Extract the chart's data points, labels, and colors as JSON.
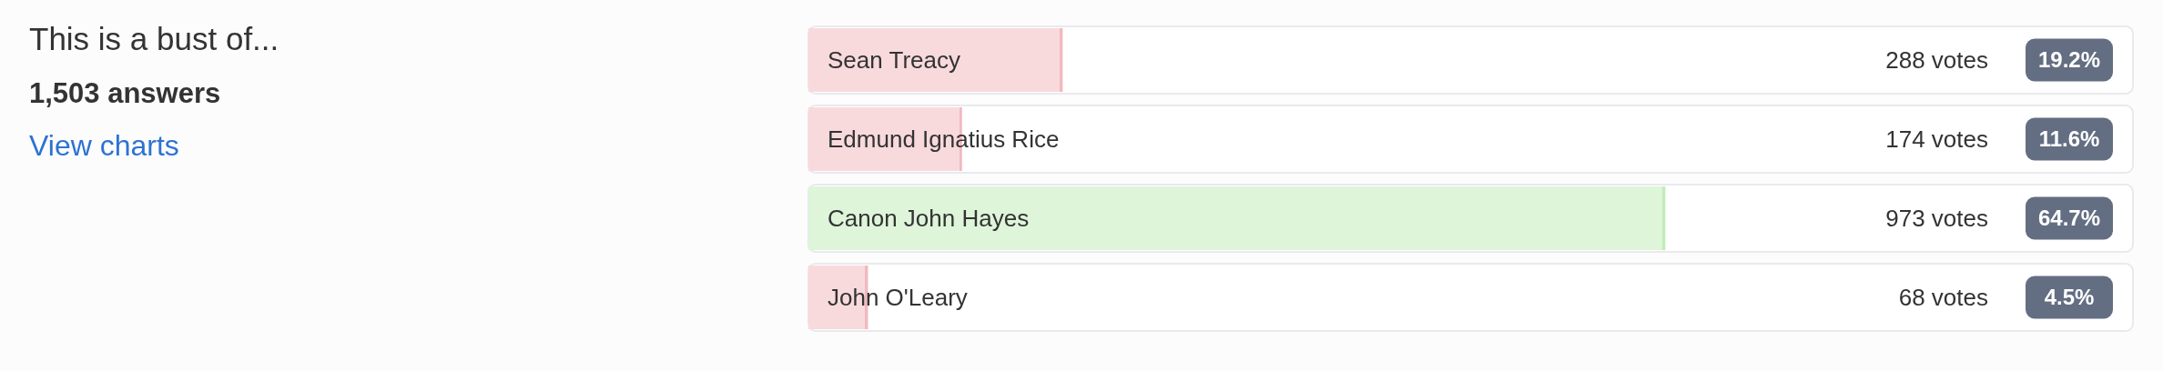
{
  "chart_data": {
    "type": "bar",
    "orientation": "horizontal",
    "title": "This is a bust of...",
    "subtitle": "1,503 answers",
    "categories": [
      "Sean Treacy",
      "Edmund Ignatius Rice",
      "Canon John Hayes",
      "John O'Leary"
    ],
    "values": [
      19.2,
      11.6,
      64.7,
      4.5
    ],
    "value_labels": [
      "19.2%",
      "11.6%",
      "64.7%",
      "4.5%"
    ],
    "colors": [
      "#f8dadd",
      "#f8dadd",
      "#def5da",
      "#f8dadd"
    ],
    "xlim": [
      0,
      100
    ],
    "tick_labels": "y",
    "annotations": [
      "288 votes",
      "174 votes",
      "973 votes",
      "68 votes",
      "View charts"
    ]
  }
}
